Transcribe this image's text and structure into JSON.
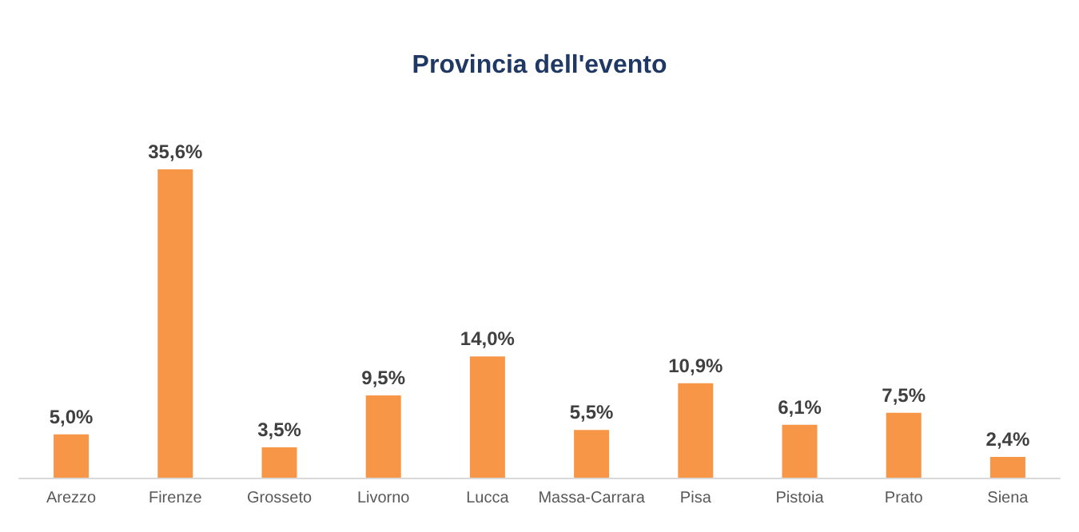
{
  "chart_data": {
    "type": "bar",
    "title": "Provincia dell'evento",
    "categories": [
      "Arezzo",
      "Firenze",
      "Grosseto",
      "Livorno",
      "Lucca",
      "Massa-Carrara",
      "Pisa",
      "Pistoia",
      "Prato",
      "Siena"
    ],
    "values": [
      5.0,
      35.6,
      3.5,
      9.5,
      14.0,
      5.5,
      10.9,
      6.1,
      7.5,
      2.4
    ],
    "value_labels": [
      "5,0%",
      "35,6%",
      "3,5%",
      "9,5%",
      "14,0%",
      "5,5%",
      "10,9%",
      "6,1%",
      "7,5%",
      "2,4%"
    ],
    "color": "#f79646"
  }
}
